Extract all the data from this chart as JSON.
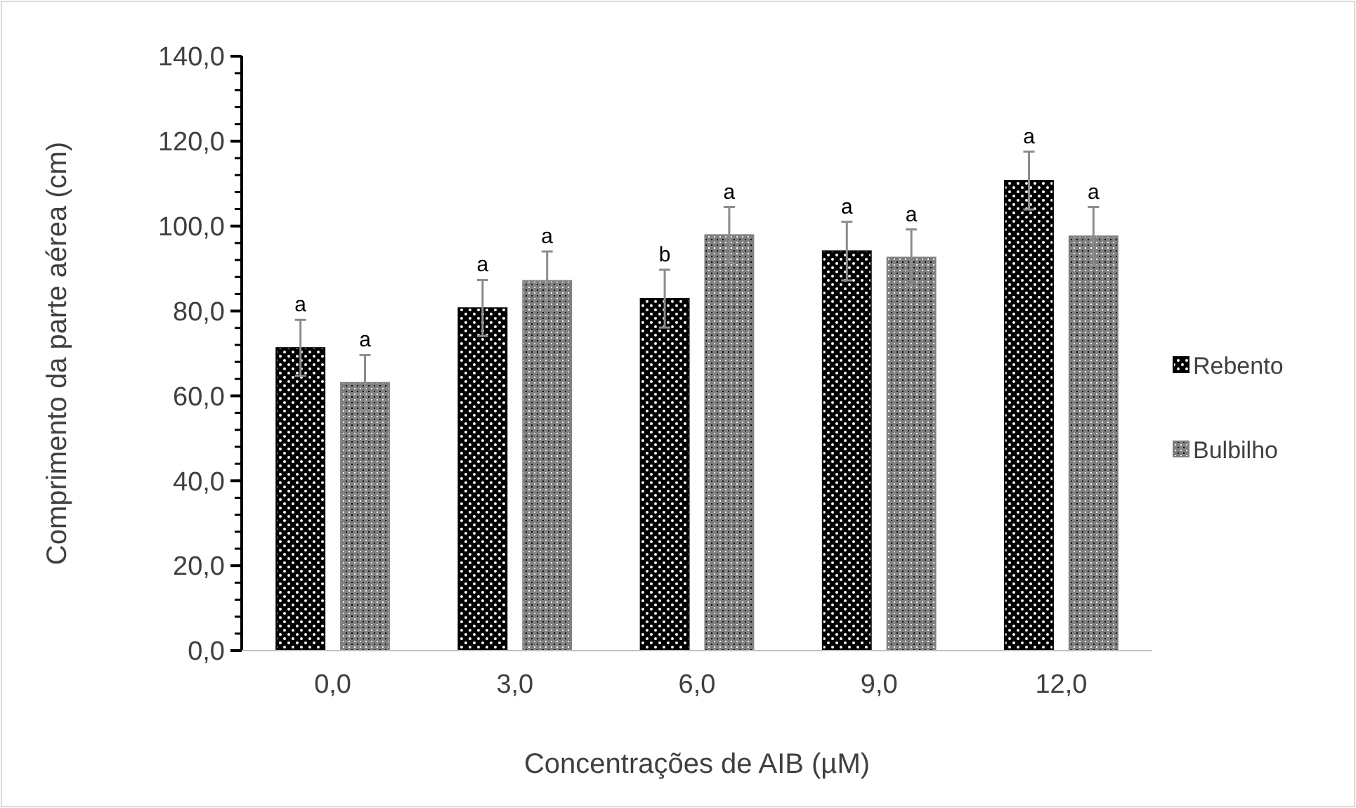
{
  "chart_data": {
    "type": "bar",
    "xlabel": "Concentrações de AIB (µM)",
    "ylabel": "Comprimento da parte aérea (cm)",
    "categories": [
      "0,0",
      "3,0",
      "6,0",
      "9,0",
      "12,0"
    ],
    "series": [
      {
        "name": "Rebento",
        "color": "#000000",
        "values": [
          71.3,
          80.7,
          82.9,
          94.1,
          110.7
        ],
        "errors": [
          6.6,
          6.6,
          6.8,
          6.9,
          6.8
        ]
      },
      {
        "name": "Bulbilho",
        "color": "#808080",
        "values": [
          63.1,
          87.1,
          97.9,
          92.6,
          97.6
        ],
        "errors": [
          6.5,
          6.9,
          6.6,
          6.6,
          6.9
        ]
      }
    ],
    "ylim": [
      0,
      140
    ],
    "yticks": [
      {
        "value": 0,
        "label": "0,0"
      },
      {
        "value": 20,
        "label": "20,0"
      },
      {
        "value": 40,
        "label": "40,0"
      },
      {
        "value": 60,
        "label": "60,0"
      },
      {
        "value": 80,
        "label": "80,0"
      },
      {
        "value": 100,
        "label": "100,0"
      },
      {
        "value": 120,
        "label": "120,0"
      },
      {
        "value": 140,
        "label": "140,0"
      }
    ],
    "annotations": [
      "a",
      "a",
      "a",
      "a",
      "b",
      "a",
      "a",
      "a",
      "a",
      "a"
    ],
    "grid": false,
    "legend": "right"
  }
}
